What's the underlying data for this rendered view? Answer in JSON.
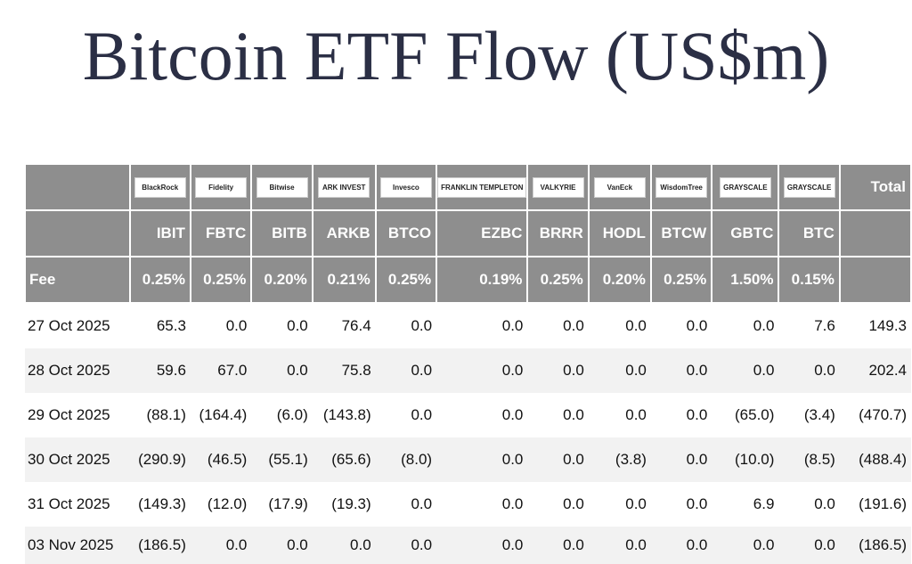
{
  "title": "Bitcoin ETF Flow (US$m)",
  "table": {
    "logos": [
      "BlackRock",
      "Fidelity",
      "Bitwise",
      "ARK INVEST",
      "Invesco",
      "FRANKLIN TEMPLETON",
      "VALKYRIE",
      "VanEck",
      "WisdomTree",
      "GRAYSCALE",
      "GRAYSCALE"
    ],
    "total_header": "Total",
    "tickers": [
      "IBIT",
      "FBTC",
      "BITB",
      "ARKB",
      "BTCO",
      "EZBC",
      "BRRR",
      "HODL",
      "BTCW",
      "GBTC",
      "BTC"
    ],
    "fee_label": "Fee",
    "fees": [
      "0.25%",
      "0.25%",
      "0.20%",
      "0.21%",
      "0.25%",
      "0.19%",
      "0.25%",
      "0.20%",
      "0.25%",
      "1.50%",
      "0.15%"
    ],
    "rows": [
      {
        "date": "27 Oct 2025",
        "values": [
          "65.3",
          "0.0",
          "0.0",
          "76.4",
          "0.0",
          "0.0",
          "0.0",
          "0.0",
          "0.0",
          "0.0",
          "7.6",
          "149.3"
        ]
      },
      {
        "date": "28 Oct 2025",
        "values": [
          "59.6",
          "67.0",
          "0.0",
          "75.8",
          "0.0",
          "0.0",
          "0.0",
          "0.0",
          "0.0",
          "0.0",
          "0.0",
          "202.4"
        ]
      },
      {
        "date": "29 Oct 2025",
        "values": [
          "(88.1)",
          "(164.4)",
          "(6.0)",
          "(143.8)",
          "0.0",
          "0.0",
          "0.0",
          "0.0",
          "0.0",
          "(65.0)",
          "(3.4)",
          "(470.7)"
        ]
      },
      {
        "date": "30 Oct 2025",
        "values": [
          "(290.9)",
          "(46.5)",
          "(55.1)",
          "(65.6)",
          "(8.0)",
          "0.0",
          "0.0",
          "(3.8)",
          "0.0",
          "(10.0)",
          "(8.5)",
          "(488.4)"
        ]
      },
      {
        "date": "31 Oct 2025",
        "values": [
          "(149.3)",
          "(12.0)",
          "(17.9)",
          "(19.3)",
          "0.0",
          "0.0",
          "0.0",
          "0.0",
          "0.0",
          "6.9",
          "0.0",
          "(191.6)"
        ]
      },
      {
        "date": "03 Nov 2025",
        "values": [
          "(186.5)",
          "0.0",
          "0.0",
          "0.0",
          "0.0",
          "0.0",
          "0.0",
          "0.0",
          "0.0",
          "0.0",
          "0.0",
          "(186.5)"
        ]
      }
    ]
  }
}
